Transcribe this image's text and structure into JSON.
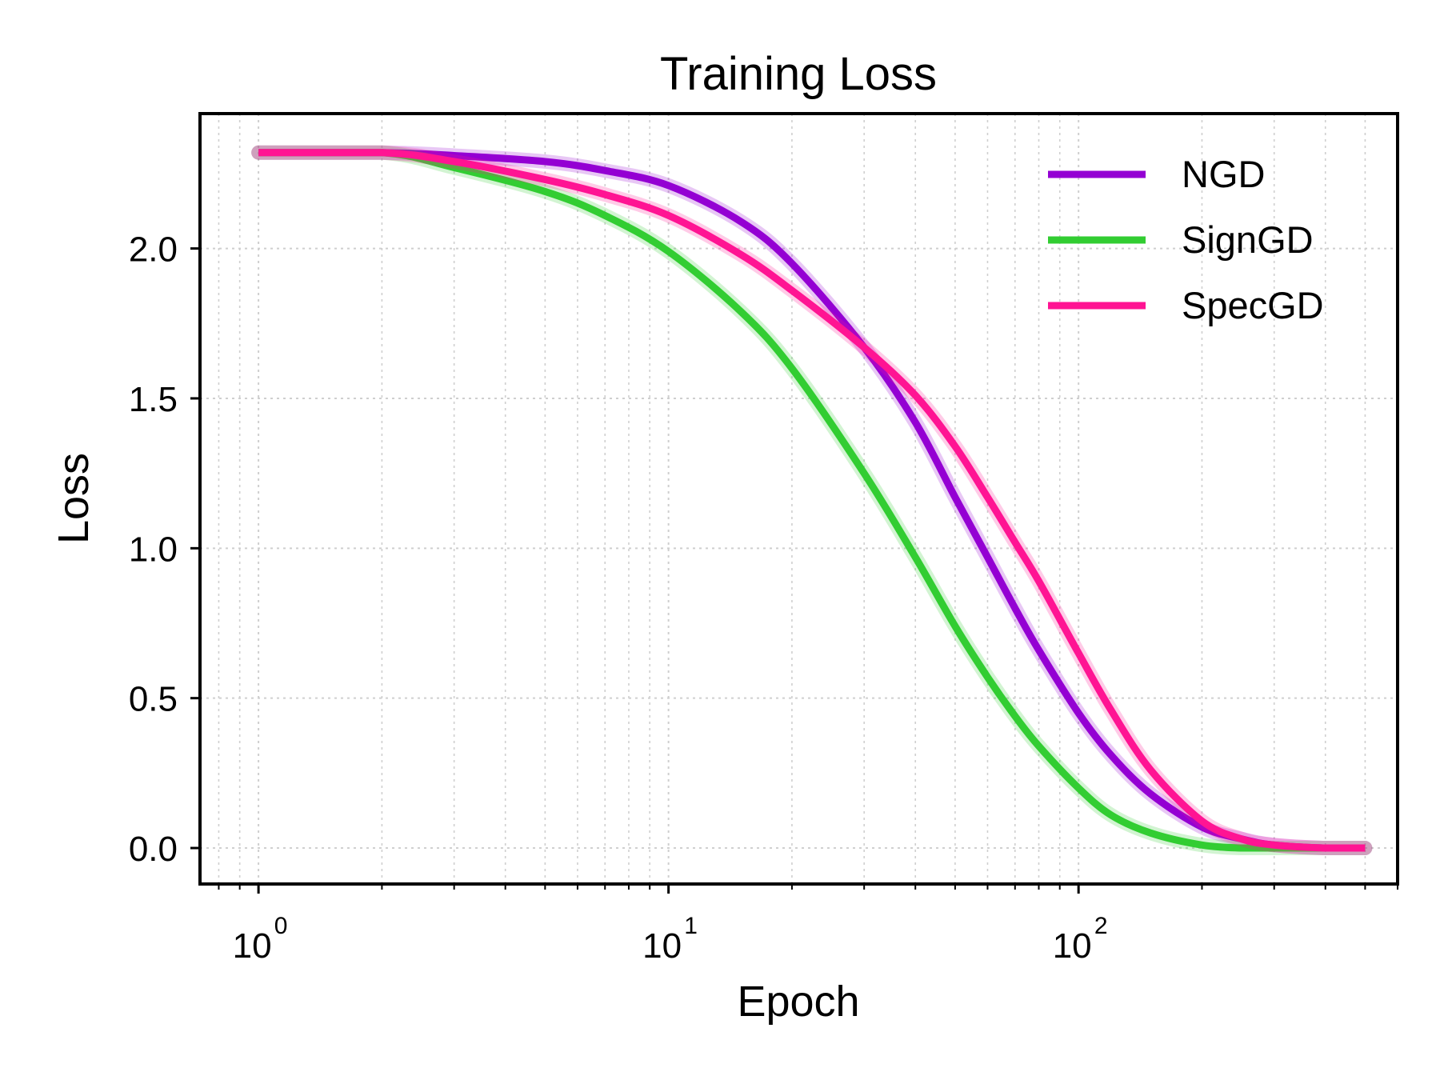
{
  "chart_data": {
    "type": "line",
    "title": "Training Loss",
    "xlabel": "Epoch",
    "ylabel": "Loss",
    "xscale": "log",
    "xlim": [
      0.72,
      600
    ],
    "ylim": [
      -0.12,
      2.45
    ],
    "xticks": [
      {
        "value": 1,
        "base": "10",
        "exp": "0"
      },
      {
        "value": 10,
        "base": "10",
        "exp": "1"
      },
      {
        "value": 100,
        "base": "10",
        "exp": "2"
      }
    ],
    "yticks": [
      {
        "value": 0.0,
        "label": "0.0"
      },
      {
        "value": 0.5,
        "label": "0.5"
      },
      {
        "value": 1.0,
        "label": "1.0"
      },
      {
        "value": 1.5,
        "label": "1.5"
      },
      {
        "value": 2.0,
        "label": "2.0"
      }
    ],
    "grid": true,
    "legend_position": "top-right",
    "series": [
      {
        "name": "NGD",
        "color": "#9400D3",
        "x": [
          1,
          2,
          3,
          5,
          7,
          10,
          15,
          20,
          30,
          40,
          50,
          60,
          70,
          80,
          100,
          120,
          150,
          200,
          250,
          300,
          400,
          500
        ],
        "y": [
          2.32,
          2.32,
          2.31,
          2.29,
          2.26,
          2.21,
          2.09,
          1.95,
          1.67,
          1.42,
          1.17,
          0.97,
          0.8,
          0.66,
          0.45,
          0.31,
          0.18,
          0.07,
          0.03,
          0.01,
          0.0,
          0.0
        ]
      },
      {
        "name": "SignGD",
        "color": "#32CD32",
        "x": [
          1,
          2,
          3,
          5,
          7,
          10,
          15,
          20,
          30,
          40,
          50,
          60,
          70,
          80,
          100,
          120,
          150,
          200,
          250,
          300,
          400,
          500
        ],
        "y": [
          2.32,
          2.32,
          2.27,
          2.19,
          2.11,
          1.99,
          1.79,
          1.6,
          1.25,
          0.97,
          0.74,
          0.57,
          0.44,
          0.34,
          0.2,
          0.11,
          0.05,
          0.01,
          0.0,
          0.0,
          0.0,
          0.0
        ]
      },
      {
        "name": "SpecGD",
        "color": "#FF1493",
        "x": [
          1,
          2,
          3,
          5,
          7,
          10,
          15,
          20,
          30,
          40,
          50,
          60,
          70,
          80,
          100,
          120,
          150,
          200,
          250,
          300,
          400,
          500
        ],
        "y": [
          2.32,
          2.32,
          2.29,
          2.23,
          2.18,
          2.11,
          1.98,
          1.86,
          1.67,
          1.51,
          1.34,
          1.17,
          1.02,
          0.89,
          0.65,
          0.46,
          0.26,
          0.09,
          0.03,
          0.01,
          0.0,
          0.0
        ]
      }
    ]
  }
}
